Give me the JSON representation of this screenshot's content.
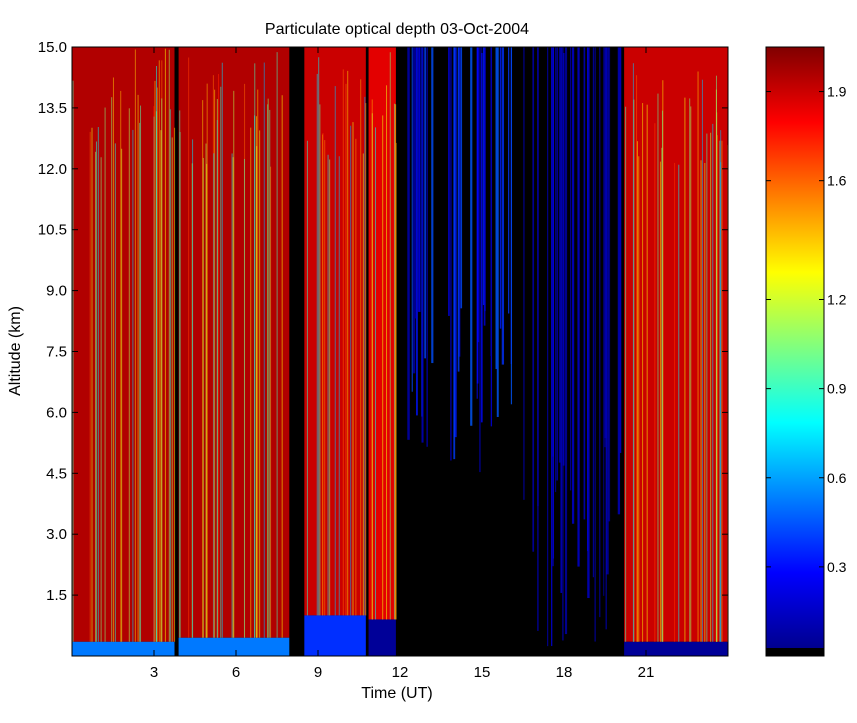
{
  "chart_data": {
    "type": "heatmap",
    "title": "Particulate optical depth  03-Oct-2004",
    "xlabel": "Time (UT)",
    "ylabel": "Altitude (km)",
    "xlim": [
      0,
      24
    ],
    "ylim": [
      0,
      15
    ],
    "xticks": [
      3,
      6,
      9,
      12,
      15,
      18,
      21
    ],
    "xtick_labels": [
      "3",
      "6",
      "9",
      "12",
      "15",
      "18",
      "21"
    ],
    "yticks": [
      1.5,
      3.0,
      4.5,
      6.0,
      7.5,
      9.0,
      10.5,
      12.0,
      13.5,
      15.0
    ],
    "ytick_labels": [
      "1.5",
      "3.0",
      "4.5",
      "6.0",
      "7.5",
      "9.0",
      "10.5",
      "12.0",
      "13.5",
      "15.0"
    ],
    "colorbar": {
      "colormap": "jet",
      "range": [
        0,
        2.05
      ],
      "ticks": [
        0.3,
        0.6,
        0.9,
        1.2,
        1.6,
        1.9
      ],
      "tick_labels": [
        "0.3",
        "0.6",
        "0.9",
        "1.2",
        "1.6",
        "1.9"
      ]
    },
    "data_gaps_ut": [
      [
        3.75,
        3.9
      ],
      [
        7.95,
        8.5
      ],
      [
        10.75,
        10.85
      ],
      [
        11.85,
        12.25
      ],
      [
        16.2,
        16.45
      ],
      [
        20.05,
        20.2
      ]
    ],
    "time_segments": [
      {
        "start": 0.0,
        "end": 3.75,
        "aloft_value": 1.95,
        "surface_layer_top_km": 0.35,
        "surface_layer_value": 0.5
      },
      {
        "start": 3.9,
        "end": 7.95,
        "aloft_value": 1.95,
        "surface_layer_top_km": 0.45,
        "surface_layer_value": 0.5
      },
      {
        "start": 8.5,
        "end": 10.75,
        "aloft_value": 1.9,
        "surface_layer_top_km": 1.0,
        "surface_layer_value": 0.35
      },
      {
        "start": 10.85,
        "end": 11.85,
        "aloft_value": 1.85,
        "surface_layer_top_km": 0.9,
        "surface_layer_value": 0.05
      },
      {
        "start": 12.25,
        "end": 16.2,
        "aloft_value": 0.2,
        "clear_below_km": 4.5,
        "surface_layer_value": 0.0
      },
      {
        "start": 16.45,
        "end": 20.05,
        "aloft_value": 0.1,
        "clear_below_km": 0.0,
        "surface_layer_value": 0.0
      },
      {
        "start": 20.2,
        "end": 24.0,
        "aloft_value": 1.9,
        "surface_layer_top_km": 0.35,
        "surface_layer_value": 0.05
      }
    ]
  }
}
